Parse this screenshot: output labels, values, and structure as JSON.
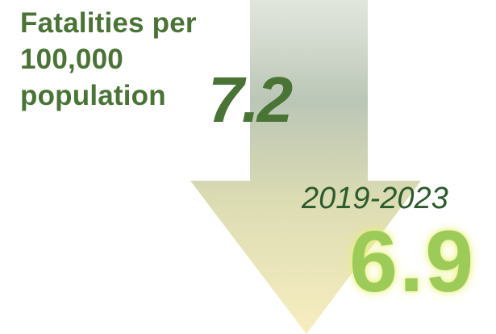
{
  "heading": {
    "lines": [
      "Fatalities per",
      "100,000",
      "population"
    ]
  },
  "start_value": "7.2",
  "period": "2019-2023",
  "end_value": "6.9",
  "colors": {
    "dark_green": "#4a7336",
    "deep_green": "#2b5b2c",
    "light_green": "#9ccb5a",
    "arrow_top": "#c3cdbc",
    "arrow_bottom": "#f5ecbd"
  }
}
